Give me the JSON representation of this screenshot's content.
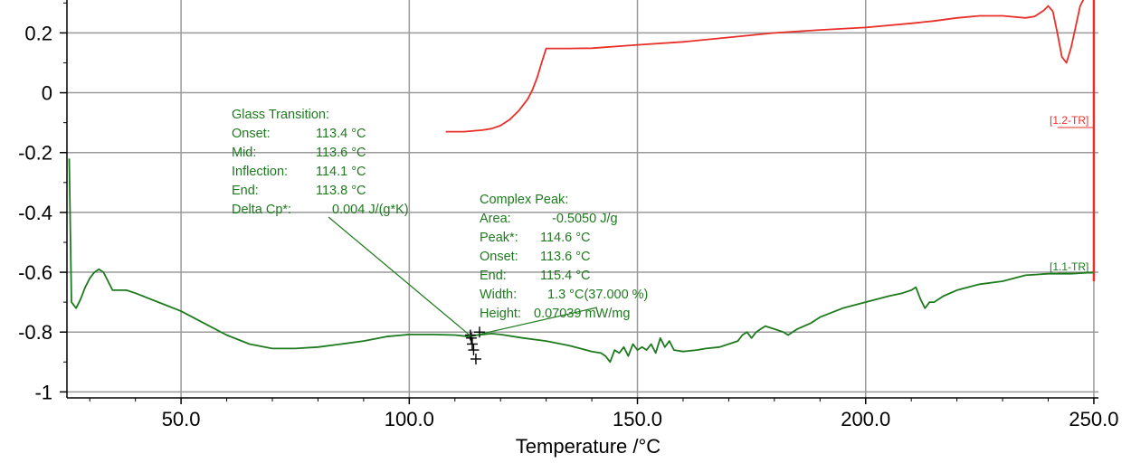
{
  "chart_data": {
    "type": "line",
    "title": "",
    "xlabel": "Temperature /°C",
    "ylabel": "",
    "xlim": [
      25,
      251
    ],
    "ylim": [
      -1.02,
      0.31
    ],
    "x_ticks": [
      50,
      100,
      150,
      200,
      250
    ],
    "x_tick_labels": [
      "50.0",
      "100.0",
      "150.0",
      "200.0",
      "250.0"
    ],
    "y_ticks": [
      0.2,
      0,
      -0.2,
      -0.4,
      -0.6,
      -0.8,
      -1
    ],
    "y_tick_labels": [
      "0.2",
      "0",
      "-0.2",
      "-0.4",
      "-0.6",
      "-0.8",
      "-1"
    ],
    "grid": true,
    "colors": {
      "red_series": "#e8302a",
      "green_series": "#1e7a1e",
      "grid": "#9a9a9a",
      "axis": "#000000"
    },
    "series": [
      {
        "name": "[1.2-TR]",
        "color": "#e8302a",
        "x": [
          108,
          112,
          116,
          118,
          120,
          122,
          124,
          126,
          127,
          128,
          129,
          130,
          135,
          140,
          150,
          160,
          170,
          180,
          190,
          200,
          210,
          215,
          220,
          225,
          230,
          235,
          237,
          239,
          240,
          241,
          242,
          243,
          244,
          245,
          246,
          247,
          248
        ],
        "values": [
          -0.13,
          -0.13,
          -0.125,
          -0.12,
          -0.11,
          -0.09,
          -0.06,
          -0.02,
          0.01,
          0.05,
          0.1,
          0.148,
          0.148,
          0.149,
          0.16,
          0.17,
          0.185,
          0.2,
          0.21,
          0.218,
          0.232,
          0.24,
          0.25,
          0.257,
          0.257,
          0.25,
          0.255,
          0.275,
          0.29,
          0.272,
          0.2,
          0.12,
          0.1,
          0.15,
          0.22,
          0.29,
          0.32
        ]
      },
      {
        "name": "[1.1-TR]",
        "color": "#1e7a1e",
        "x": [
          25.5,
          26,
          27,
          28,
          29,
          30,
          31,
          32,
          33,
          34,
          35,
          36,
          38,
          40,
          45,
          50,
          55,
          60,
          65,
          70,
          75,
          80,
          85,
          90,
          95,
          100,
          105,
          110,
          113,
          115,
          118,
          120,
          125,
          130,
          135,
          140,
          142,
          143,
          144,
          145,
          146,
          147,
          148,
          149,
          150,
          151,
          152,
          153,
          154,
          155,
          156,
          157,
          158,
          160,
          163,
          165,
          168,
          170,
          172,
          173,
          174,
          175,
          176,
          177,
          178,
          180,
          182,
          183,
          184,
          185,
          188,
          190,
          195,
          200,
          205,
          208,
          210,
          211,
          212,
          213,
          214,
          215,
          217,
          220,
          225,
          230,
          235,
          240,
          245,
          250
        ],
        "values": [
          -0.22,
          -0.7,
          -0.72,
          -0.69,
          -0.65,
          -0.62,
          -0.6,
          -0.59,
          -0.6,
          -0.63,
          -0.66,
          -0.66,
          -0.66,
          -0.67,
          -0.7,
          -0.73,
          -0.77,
          -0.81,
          -0.84,
          -0.855,
          -0.855,
          -0.85,
          -0.84,
          -0.83,
          -0.815,
          -0.808,
          -0.808,
          -0.81,
          -0.815,
          -0.81,
          -0.805,
          -0.808,
          -0.82,
          -0.83,
          -0.845,
          -0.865,
          -0.87,
          -0.88,
          -0.9,
          -0.86,
          -0.87,
          -0.85,
          -0.88,
          -0.84,
          -0.86,
          -0.85,
          -0.86,
          -0.84,
          -0.87,
          -0.82,
          -0.85,
          -0.83,
          -0.86,
          -0.865,
          -0.86,
          -0.855,
          -0.85,
          -0.84,
          -0.83,
          -0.81,
          -0.8,
          -0.82,
          -0.8,
          -0.79,
          -0.78,
          -0.79,
          -0.8,
          -0.81,
          -0.8,
          -0.79,
          -0.77,
          -0.75,
          -0.72,
          -0.7,
          -0.68,
          -0.67,
          -0.66,
          -0.65,
          -0.69,
          -0.72,
          -0.7,
          -0.7,
          -0.68,
          -0.66,
          -0.64,
          -0.63,
          -0.61,
          -0.605,
          -0.605,
          -0.6
        ]
      }
    ],
    "series_tags": [
      "[1.2-TR]",
      "[1.1-TR]"
    ],
    "glass_transition": {
      "heading": "Glass Transition:",
      "rows": [
        {
          "label": "Onset:",
          "value": "113.4 °C"
        },
        {
          "label": "Mid:",
          "value": "113.6 °C"
        },
        {
          "label": "Inflection:",
          "value": "114.1 °C"
        },
        {
          "label": "End:",
          "value": "113.8 °C"
        },
        {
          "label": "Delta Cp*:",
          "value": "0.004 J/(g*K)"
        }
      ]
    },
    "complex_peak": {
      "heading": "Complex Peak:",
      "rows": [
        {
          "label": "Area:",
          "value": "-0.5050 J/g"
        },
        {
          "label": "Peak*:",
          "value": "114.6 °C"
        },
        {
          "label": "Onset:",
          "value": "113.6 °C"
        },
        {
          "label": "End:",
          "value": "115.4 °C"
        },
        {
          "label": "Width:",
          "value": "1.3 °C(37.000 %)"
        },
        {
          "label": "Height:",
          "value": "0.07039 mW/mg"
        }
      ]
    }
  }
}
